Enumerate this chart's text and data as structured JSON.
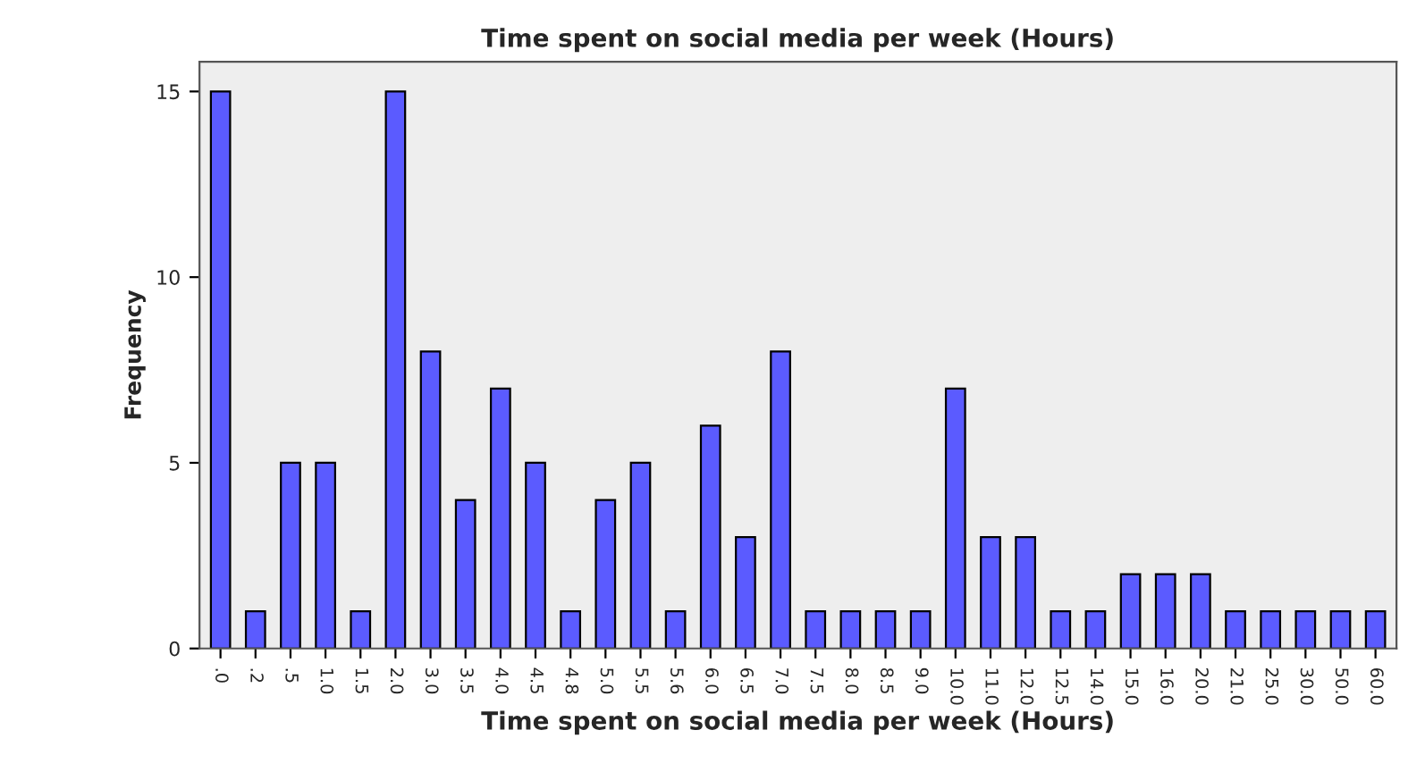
{
  "chart_data": {
    "type": "bar",
    "title": "Time spent on social media per week (Hours)",
    "xlabel": "Time spent on social media per week (Hours)",
    "ylabel": "Frequency",
    "categories": [
      ".0",
      ".2",
      ".5",
      "1.0",
      "1.5",
      "2.0",
      "3.0",
      "3.5",
      "4.0",
      "4.5",
      "4.8",
      "5.0",
      "5.5",
      "5.6",
      "6.0",
      "6.5",
      "7.0",
      "7.5",
      "8.0",
      "8.5",
      "9.0",
      "10.0",
      "11.0",
      "12.0",
      "12.5",
      "14.0",
      "15.0",
      "16.0",
      "20.0",
      "21.0",
      "25.0",
      "30.0",
      "50.0",
      "60.0"
    ],
    "values": [
      15,
      1,
      5,
      5,
      1,
      15,
      8,
      4,
      7,
      5,
      1,
      4,
      5,
      1,
      6,
      3,
      8,
      1,
      1,
      1,
      1,
      7,
      3,
      3,
      1,
      1,
      2,
      2,
      2,
      1,
      1,
      1,
      1,
      1
    ],
    "color": "#5b5bff",
    "ylim": [
      0,
      15.8
    ],
    "yticks": [
      0,
      5,
      10,
      15
    ],
    "grid": false,
    "legend": false
  }
}
